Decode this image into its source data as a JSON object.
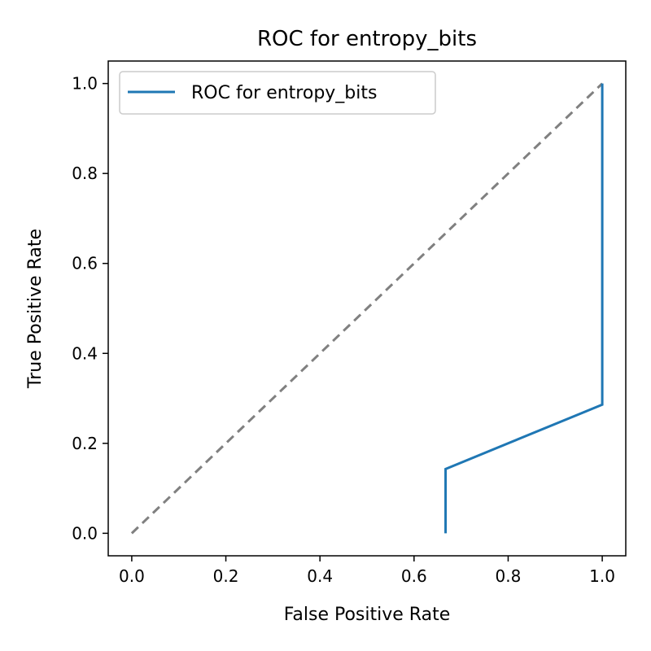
{
  "chart_data": {
    "type": "line",
    "title": "ROC for entropy_bits",
    "xlabel": "False Positive Rate",
    "ylabel": "True Positive Rate",
    "xlim": [
      -0.05,
      1.05
    ],
    "ylim": [
      -0.05,
      1.05
    ],
    "xticks": [
      0.0,
      0.2,
      0.4,
      0.6,
      0.8,
      1.0
    ],
    "yticks": [
      0.0,
      0.2,
      0.4,
      0.6,
      0.8,
      1.0
    ],
    "xtick_labels": [
      "0.0",
      "0.2",
      "0.4",
      "0.6",
      "0.8",
      "1.0"
    ],
    "ytick_labels": [
      "0.0",
      "0.2",
      "0.4",
      "0.6",
      "0.8",
      "1.0"
    ],
    "grid": false,
    "legend_position": "top-left",
    "series": [
      {
        "name": "ROC for entropy_bits",
        "color": "#1f77b4",
        "style": "solid",
        "x": [
          0.667,
          0.667,
          1.0,
          1.0
        ],
        "y": [
          0.0,
          0.143,
          0.286,
          1.0
        ]
      }
    ],
    "reference_line": {
      "color": "#808080",
      "style": "dashed",
      "x": [
        0.0,
        1.0
      ],
      "y": [
        0.0,
        1.0
      ]
    }
  }
}
